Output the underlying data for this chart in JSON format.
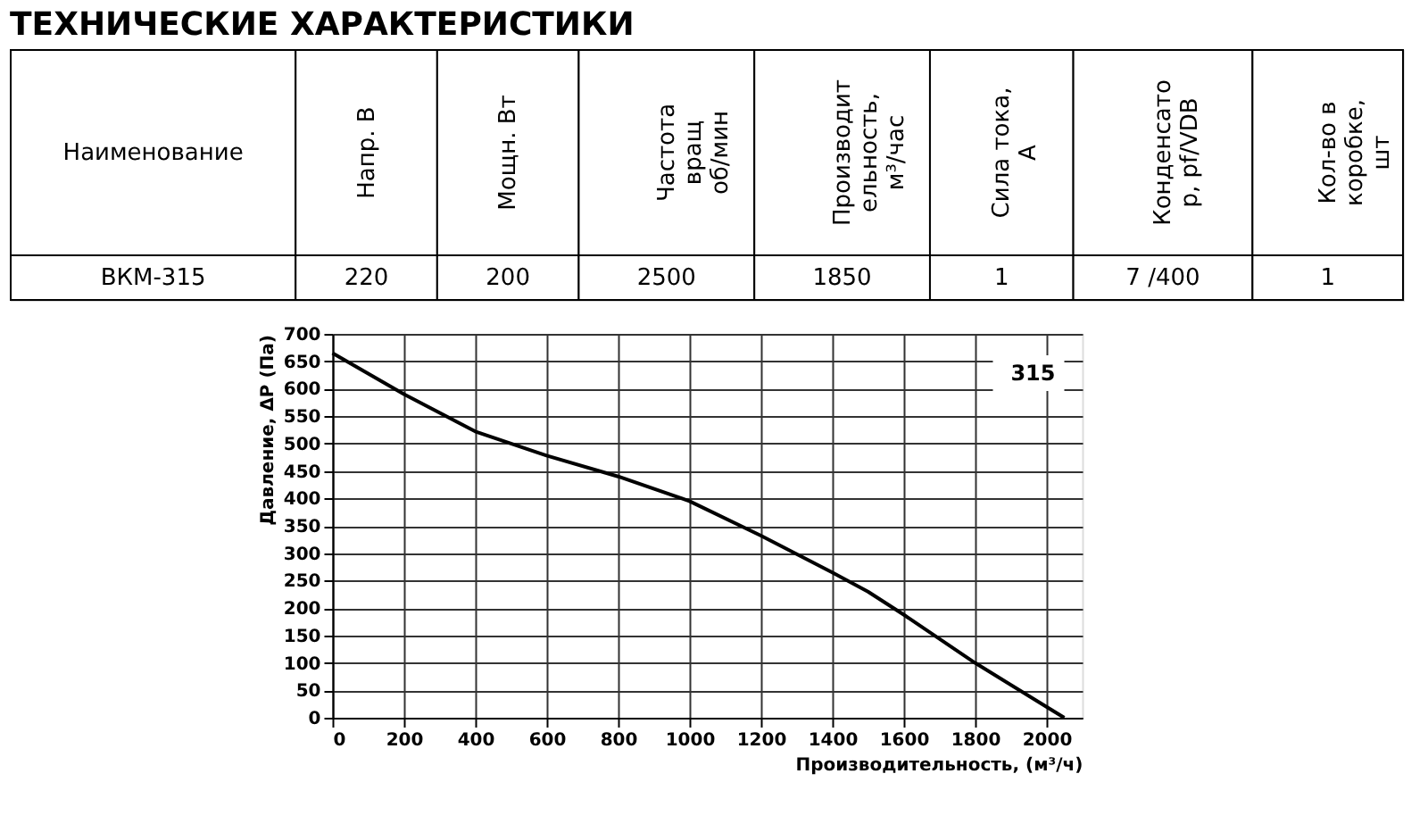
{
  "chart_data": [
    {
      "type": "other",
      "title": "ТЕХНИЧЕСКИЕ  ХАРАКТЕРИСТИКИ",
      "annotations": [
        "Наименование",
        "Напр. В",
        "Мощн. Вт",
        "Частота\nвращ\nоб/мин",
        "Производит\nельность,\nм³/час",
        "Сила тока,\nА",
        "Конденсато\nр, pf/VDB",
        "Кол-во в\nкоробке,\nшт",
        "ВКМ-315",
        "220",
        "200",
        "2500",
        "1850",
        "1",
        "7  /400",
        "1"
      ]
    },
    {
      "type": "line",
      "xlabel": "Производительность, (м³/ч)",
      "ylabel": "Давление, ΔP (Па)",
      "x": [
        0,
        200,
        400,
        600,
        800,
        1000,
        1200,
        1400,
        1500,
        1600,
        1800,
        2000,
        2050
      ],
      "series": [
        {
          "color": "#000000",
          "values": [
            665,
            590,
            522,
            478,
            440,
            395,
            332,
            265,
            230,
            188,
            100,
            20,
            0
          ]
        }
      ],
      "xlim": [
        0,
        2100
      ],
      "xticks": [
        0,
        200,
        400,
        600,
        800,
        1000,
        1200,
        1400,
        1600,
        1800,
        2000
      ],
      "ylim": [
        0,
        700
      ],
      "yticks": [
        0,
        50,
        100,
        150,
        200,
        250,
        300,
        350,
        400,
        450,
        500,
        550,
        600,
        650,
        700
      ],
      "grid": true,
      "annotations": [
        "315"
      ]
    }
  ]
}
